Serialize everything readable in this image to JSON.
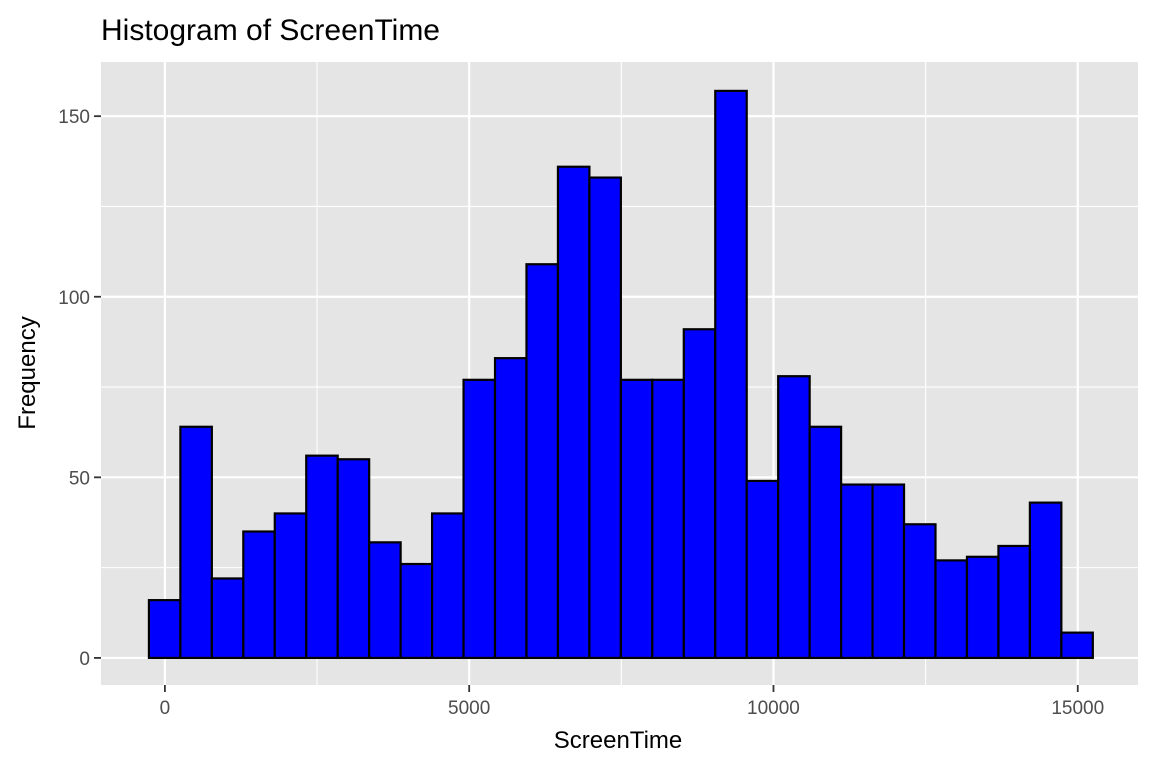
{
  "chart_data": {
    "type": "bar",
    "title": "Histogram of ScreenTime",
    "xlabel": "ScreenTime",
    "ylabel": "Frequency",
    "bin_width": 517,
    "bin_centers": [
      -4,
      513,
      1030,
      1547,
      2064,
      2581,
      3098,
      3615,
      4132,
      4649,
      5166,
      5683,
      6200,
      6717,
      7234,
      7751,
      8268,
      8785,
      9302,
      9819,
      10336,
      10853,
      11370,
      11887,
      12404,
      12921,
      13438,
      13955,
      14472,
      14989
    ],
    "values": [
      16,
      64,
      22,
      35,
      40,
      56,
      55,
      32,
      26,
      40,
      77,
      83,
      109,
      136,
      133,
      77,
      77,
      91,
      157,
      49,
      78,
      64,
      48,
      48,
      37,
      27,
      28,
      31,
      43,
      7
    ],
    "xlim": [
      -1050,
      15990
    ],
    "ylim": [
      -7.5,
      165
    ],
    "xticks": [
      0,
      5000,
      10000,
      15000
    ],
    "xtick_labels": [
      "0",
      "5000",
      "10000",
      "15000"
    ],
    "yticks": [
      0,
      50,
      100,
      150
    ],
    "ytick_labels": [
      "0",
      "50",
      "100",
      "150"
    ],
    "grid": true,
    "bar_fill": "#0000ff",
    "bar_outline": "#000000",
    "panel_background": "#e5e5e5"
  }
}
